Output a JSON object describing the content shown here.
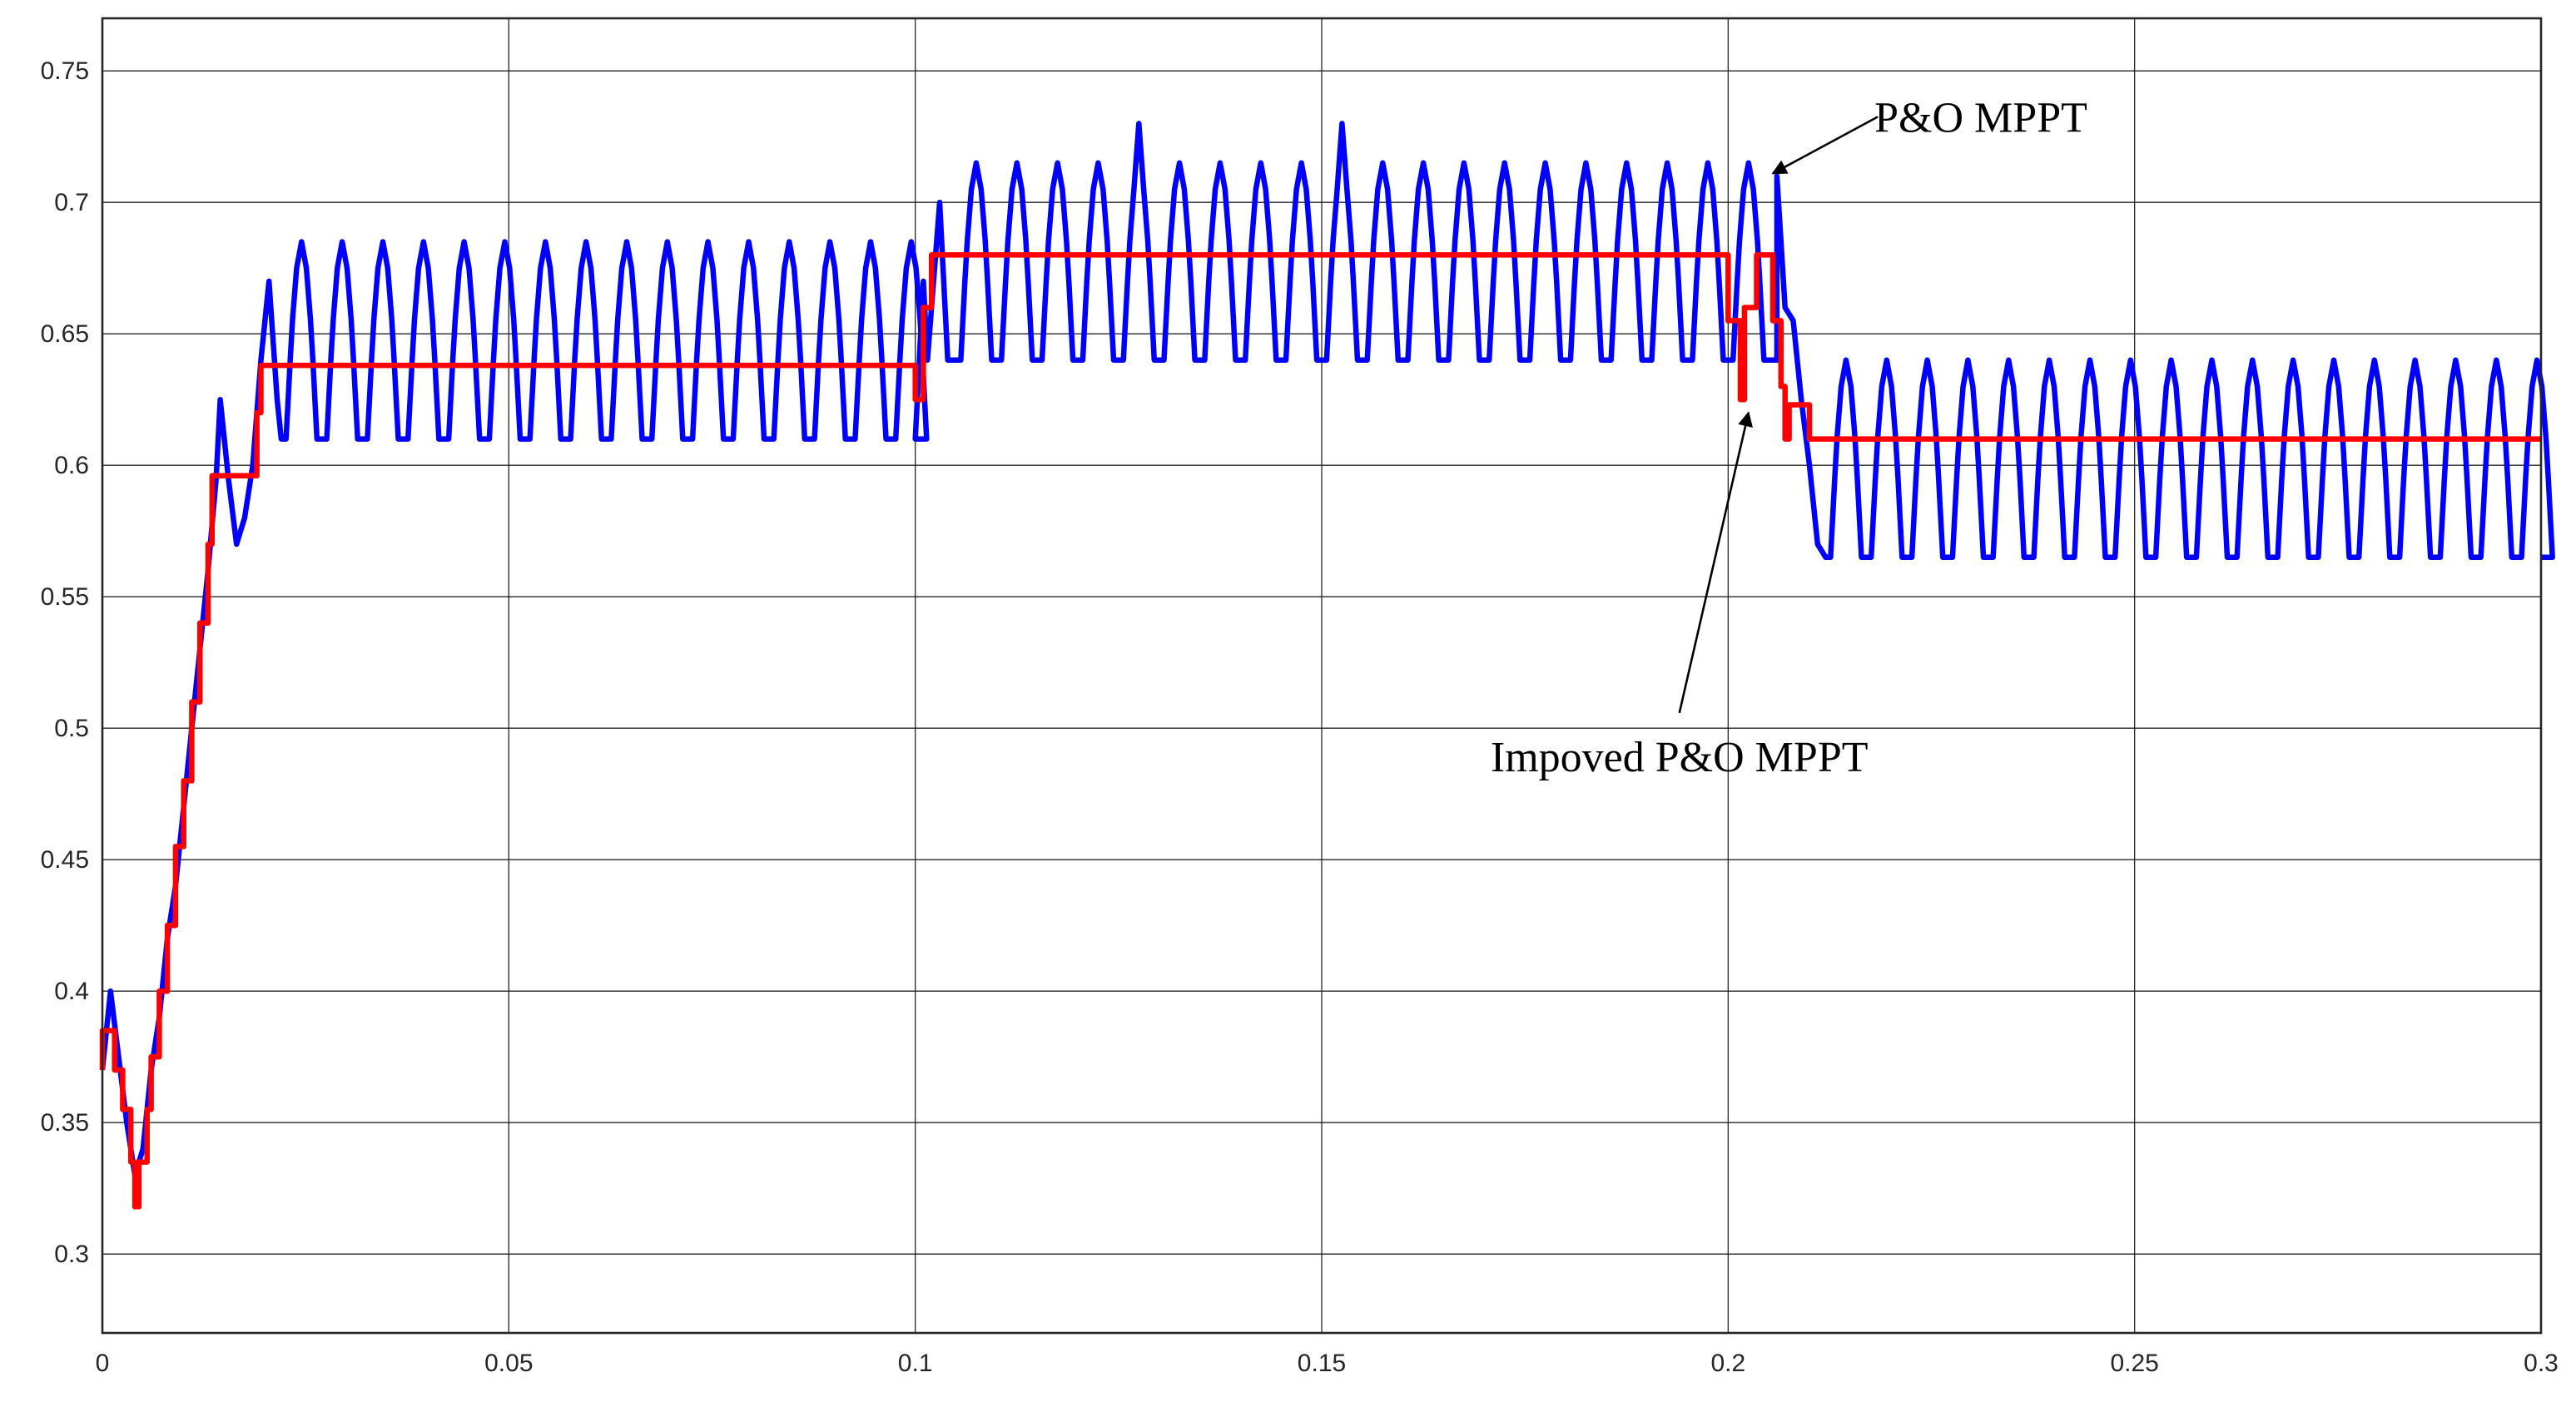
{
  "chart_data": {
    "type": "line",
    "title": "",
    "xlabel": "",
    "ylabel": "",
    "xlim": [
      0,
      0.3
    ],
    "ylim": [
      0.27,
      0.77
    ],
    "grid": true,
    "x_ticks": [
      0,
      0.05,
      0.1,
      0.15,
      0.2,
      0.25,
      0.3
    ],
    "x_tick_labels": [
      "0",
      "0.05",
      "0.1",
      "0.15",
      "0.2",
      "0.25",
      "0.3"
    ],
    "y_ticks": [
      0.3,
      0.35,
      0.4,
      0.45,
      0.5,
      0.55,
      0.6,
      0.65,
      0.7,
      0.75
    ],
    "y_tick_labels": [
      "0.3",
      "0.35",
      "0.4",
      "0.45",
      "0.5",
      "0.55",
      "0.6",
      "0.65",
      "0.7",
      "0.75"
    ],
    "series": [
      {
        "color": "#0000ff",
        "key": "po",
        "segments": [
          {
            "x0": 0.022,
            "x1": 0.1,
            "low": 0.61,
            "high": 0.685,
            "period": 0.005
          },
          {
            "x0": 0.105,
            "x1": 0.206,
            "low": 0.64,
            "high": 0.715,
            "period": 0.005
          },
          {
            "x0": 0.212,
            "x1": 0.3,
            "low": 0.565,
            "high": 0.64,
            "period": 0.005
          }
        ],
        "peaks": [
          [
            0.128,
            0.73
          ],
          [
            0.154,
            0.73
          ],
          [
            0.18,
            0.73
          ]
        ],
        "startup": [
          [
            0,
            0.37
          ],
          [
            0.001,
            0.4
          ],
          [
            0.002,
            0.375
          ],
          [
            0.003,
            0.35
          ],
          [
            0.004,
            0.33
          ],
          [
            0.005,
            0.34
          ],
          [
            0.006,
            0.37
          ],
          [
            0.007,
            0.39
          ],
          [
            0.008,
            0.42
          ],
          [
            0.009,
            0.44
          ],
          [
            0.01,
            0.47
          ],
          [
            0.011,
            0.5
          ],
          [
            0.012,
            0.53
          ],
          [
            0.013,
            0.56
          ],
          [
            0.014,
            0.595
          ],
          [
            0.0145,
            0.625
          ],
          [
            0.0155,
            0.595
          ],
          [
            0.0165,
            0.57
          ],
          [
            0.0175,
            0.58
          ],
          [
            0.0185,
            0.6
          ],
          [
            0.0195,
            0.64
          ],
          [
            0.0205,
            0.67
          ],
          [
            0.0215,
            0.625
          ],
          [
            0.022,
            0.61
          ]
        ],
        "transition_1": [
          [
            0.1,
            0.61
          ],
          [
            0.101,
            0.67
          ],
          [
            0.1015,
            0.64
          ],
          [
            0.103,
            0.7
          ],
          [
            0.104,
            0.64
          ],
          [
            0.105,
            0.64
          ]
        ],
        "transition_2": [
          [
            0.206,
            0.71
          ],
          [
            0.207,
            0.66
          ],
          [
            0.208,
            0.655
          ],
          [
            0.209,
            0.625
          ],
          [
            0.21,
            0.6
          ],
          [
            0.211,
            0.57
          ],
          [
            0.212,
            0.565
          ]
        ]
      },
      {
        "color": "#ff0000",
        "key": "ipo",
        "points": [
          [
            0,
            0.37
          ],
          [
            0,
            0.385
          ],
          [
            0.0015,
            0.385
          ],
          [
            0.0015,
            0.37
          ],
          [
            0.0025,
            0.37
          ],
          [
            0.0025,
            0.355
          ],
          [
            0.0035,
            0.355
          ],
          [
            0.0035,
            0.335
          ],
          [
            0.004,
            0.335
          ],
          [
            0.004,
            0.318
          ],
          [
            0.0045,
            0.318
          ],
          [
            0.0045,
            0.335
          ],
          [
            0.0055,
            0.335
          ],
          [
            0.0055,
            0.355
          ],
          [
            0.006,
            0.355
          ],
          [
            0.006,
            0.375
          ],
          [
            0.007,
            0.375
          ],
          [
            0.007,
            0.4
          ],
          [
            0.008,
            0.4
          ],
          [
            0.008,
            0.425
          ],
          [
            0.009,
            0.425
          ],
          [
            0.009,
            0.455
          ],
          [
            0.01,
            0.455
          ],
          [
            0.01,
            0.48
          ],
          [
            0.011,
            0.48
          ],
          [
            0.011,
            0.51
          ],
          [
            0.012,
            0.51
          ],
          [
            0.012,
            0.54
          ],
          [
            0.013,
            0.54
          ],
          [
            0.013,
            0.57
          ],
          [
            0.0135,
            0.57
          ],
          [
            0.0135,
            0.596
          ],
          [
            0.019,
            0.596
          ],
          [
            0.019,
            0.62
          ],
          [
            0.0195,
            0.62
          ],
          [
            0.0195,
            0.638
          ],
          [
            0.1,
            0.638
          ],
          [
            0.1,
            0.625
          ],
          [
            0.101,
            0.625
          ],
          [
            0.101,
            0.66
          ],
          [
            0.102,
            0.66
          ],
          [
            0.102,
            0.68
          ],
          [
            0.2,
            0.68
          ],
          [
            0.2,
            0.655
          ],
          [
            0.2015,
            0.655
          ],
          [
            0.2015,
            0.625
          ],
          [
            0.202,
            0.625
          ],
          [
            0.202,
            0.66
          ],
          [
            0.2035,
            0.66
          ],
          [
            0.2035,
            0.68
          ],
          [
            0.2055,
            0.68
          ],
          [
            0.2055,
            0.655
          ],
          [
            0.2065,
            0.655
          ],
          [
            0.2065,
            0.63
          ],
          [
            0.207,
            0.63
          ],
          [
            0.207,
            0.61
          ],
          [
            0.2075,
            0.61
          ],
          [
            0.2075,
            0.623
          ],
          [
            0.21,
            0.623
          ],
          [
            0.21,
            0.61
          ],
          [
            0.3,
            0.61
          ]
        ]
      }
    ],
    "annotations": [
      {
        "text": "P&O MPPT",
        "target": [
          0.2055,
          0.711
        ],
        "label_at": [
          0.218,
          0.73
        ]
      },
      {
        "text": "Impoved P&O MPPT",
        "target": [
          0.2025,
          0.62
        ],
        "label_at": [
          0.194,
          0.49
        ]
      }
    ]
  }
}
